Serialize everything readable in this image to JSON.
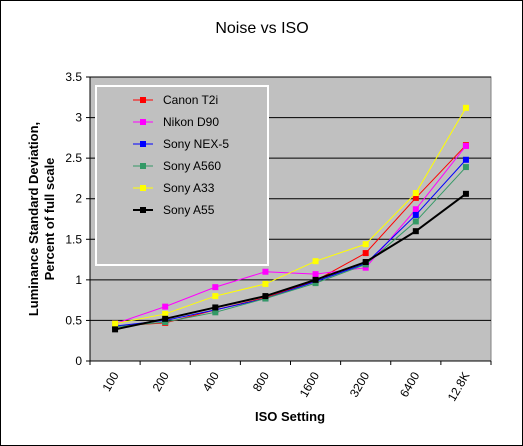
{
  "chart_data": {
    "type": "line",
    "title": "Noise vs ISO",
    "xlabel": "ISO Setting",
    "ylabel_line1": "Luminance Standard Deviation,",
    "ylabel_line2": "Percent of full scale",
    "categories": [
      "100",
      "200",
      "400",
      "800",
      "1600",
      "3200",
      "6400",
      "12.8K"
    ],
    "ylim": [
      0,
      3.5
    ],
    "yticks": [
      "0",
      "0.5",
      "1",
      "1.5",
      "2",
      "2.5",
      "3",
      "3.5"
    ],
    "grid": true,
    "legend_position": "top-left",
    "series": [
      {
        "name": "Canon T2i",
        "color": "#ff0000",
        "marker": "square",
        "values": [
          0.43,
          0.47,
          0.63,
          0.78,
          0.99,
          1.33,
          2.01,
          2.66
        ]
      },
      {
        "name": "Nikon D90",
        "color": "#ff00ff",
        "marker": "square",
        "values": [
          0.46,
          0.67,
          0.91,
          1.1,
          1.07,
          1.15,
          1.87,
          2.65
        ]
      },
      {
        "name": "Sony NEX-5",
        "color": "#0000ff",
        "marker": "square",
        "values": [
          0.43,
          0.5,
          0.63,
          0.77,
          0.98,
          1.2,
          1.8,
          2.48
        ]
      },
      {
        "name": "Sony A560",
        "color": "#339966",
        "marker": "square",
        "values": [
          0.42,
          0.48,
          0.6,
          0.77,
          0.96,
          1.19,
          1.72,
          2.39
        ]
      },
      {
        "name": "Sony A33",
        "color": "#ffff00",
        "marker": "square",
        "values": [
          0.46,
          0.58,
          0.8,
          0.95,
          1.23,
          1.44,
          2.07,
          3.12
        ]
      },
      {
        "name": "Sony A55",
        "color": "#000000",
        "marker": "square",
        "values": [
          0.39,
          0.52,
          0.66,
          0.8,
          1.0,
          1.22,
          1.6,
          2.06
        ]
      }
    ],
    "colors": {
      "plot_background": "#c0c0c0",
      "gridline": "#000000"
    }
  }
}
